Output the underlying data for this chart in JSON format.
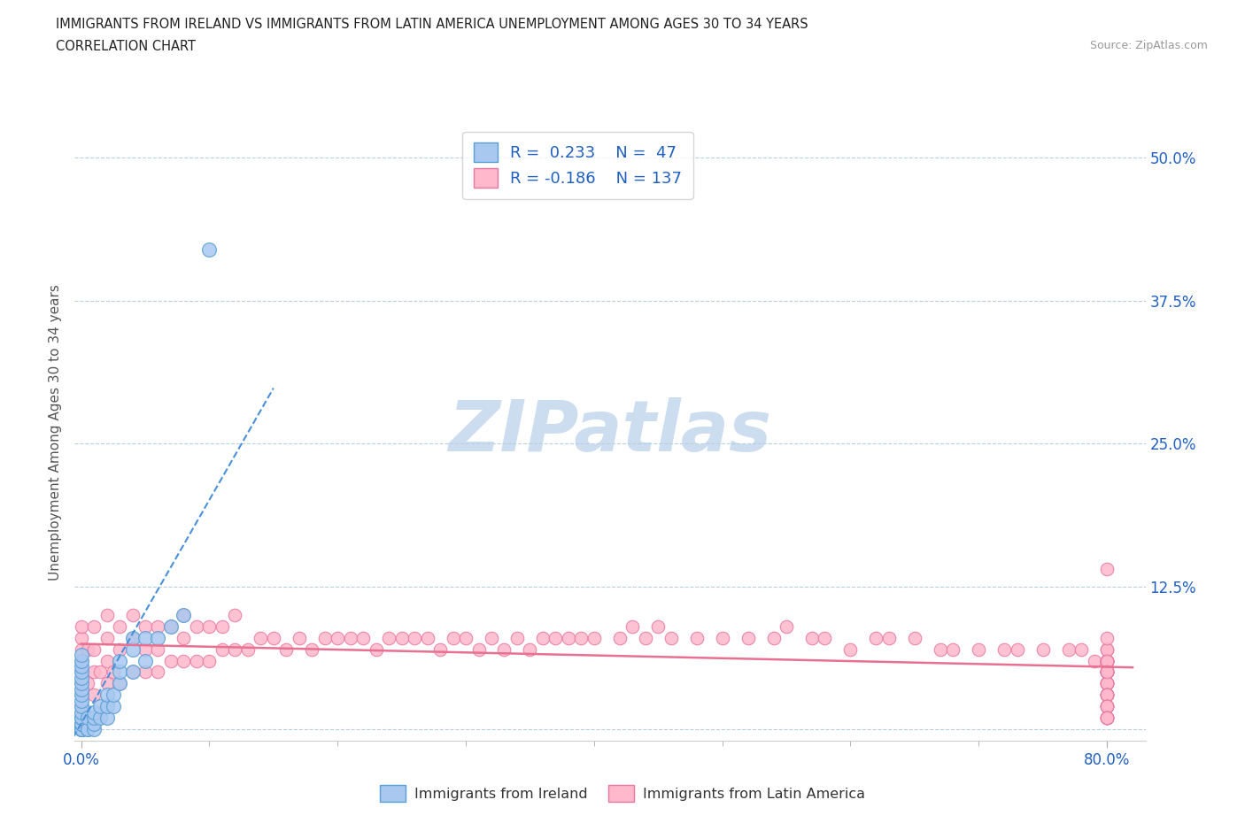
{
  "title_line1": "IMMIGRANTS FROM IRELAND VS IMMIGRANTS FROM LATIN AMERICA UNEMPLOYMENT AMONG AGES 30 TO 34 YEARS",
  "title_line2": "CORRELATION CHART",
  "source_text": "Source: ZipAtlas.com",
  "ylabel": "Unemployment Among Ages 30 to 34 years",
  "xlim": [
    -0.005,
    0.83
  ],
  "ylim": [
    -0.01,
    0.53
  ],
  "xtick_pos": [
    0.0,
    0.8
  ],
  "xtick_labels": [
    "0.0%",
    "80.0%"
  ],
  "ytick_pos": [
    0.0,
    0.125,
    0.25,
    0.375,
    0.5
  ],
  "ytick_labels": [
    "",
    "12.5%",
    "25.0%",
    "37.5%",
    "50.0%"
  ],
  "ireland_color": "#a8c8f0",
  "ireland_edge_color": "#5a9fd4",
  "latin_color": "#ffb8cc",
  "latin_edge_color": "#e878a0",
  "ireland_trend_color": "#4a90d9",
  "latin_trend_color": "#e87090",
  "watermark_text": "ZIPatlas",
  "watermark_color": "#ccddf0",
  "ireland_R": 0.233,
  "ireland_N": 47,
  "latin_R": -0.186,
  "latin_N": 137,
  "legend_color": "#2060c0",
  "legend_title_ireland": "Immigrants from Ireland",
  "legend_title_latin": "Immigrants from Latin America",
  "ireland_x": [
    0.0,
    0.0,
    0.0,
    0.0,
    0.0,
    0.0,
    0.0,
    0.0,
    0.0,
    0.0,
    0.0,
    0.0,
    0.0,
    0.0,
    0.0,
    0.0,
    0.0,
    0.0,
    0.0,
    0.0,
    0.0,
    0.005,
    0.005,
    0.005,
    0.01,
    0.01,
    0.01,
    0.01,
    0.015,
    0.015,
    0.02,
    0.02,
    0.02,
    0.025,
    0.025,
    0.03,
    0.03,
    0.03,
    0.04,
    0.04,
    0.04,
    0.05,
    0.05,
    0.06,
    0.07,
    0.08,
    0.1
  ],
  "ireland_y": [
    0.0,
    0.0,
    0.0,
    0.0,
    0.0,
    0.0,
    0.005,
    0.005,
    0.01,
    0.01,
    0.015,
    0.02,
    0.025,
    0.03,
    0.035,
    0.04,
    0.045,
    0.05,
    0.055,
    0.06,
    0.065,
    0.0,
    0.0,
    0.01,
    0.0,
    0.005,
    0.01,
    0.015,
    0.01,
    0.02,
    0.01,
    0.02,
    0.03,
    0.02,
    0.03,
    0.04,
    0.05,
    0.06,
    0.05,
    0.07,
    0.08,
    0.06,
    0.08,
    0.08,
    0.09,
    0.1,
    0.42
  ],
  "latin_x": [
    0.0,
    0.0,
    0.0,
    0.0,
    0.0,
    0.0,
    0.0,
    0.0,
    0.005,
    0.005,
    0.01,
    0.01,
    0.01,
    0.01,
    0.015,
    0.02,
    0.02,
    0.02,
    0.02,
    0.025,
    0.03,
    0.03,
    0.03,
    0.04,
    0.04,
    0.04,
    0.05,
    0.05,
    0.05,
    0.06,
    0.06,
    0.06,
    0.07,
    0.07,
    0.08,
    0.08,
    0.08,
    0.09,
    0.09,
    0.1,
    0.1,
    0.11,
    0.11,
    0.12,
    0.12,
    0.13,
    0.14,
    0.15,
    0.16,
    0.17,
    0.18,
    0.19,
    0.2,
    0.21,
    0.22,
    0.23,
    0.24,
    0.25,
    0.26,
    0.27,
    0.28,
    0.29,
    0.3,
    0.31,
    0.32,
    0.33,
    0.34,
    0.35,
    0.36,
    0.37,
    0.38,
    0.39,
    0.4,
    0.42,
    0.43,
    0.44,
    0.45,
    0.46,
    0.48,
    0.5,
    0.52,
    0.54,
    0.55,
    0.57,
    0.58,
    0.6,
    0.62,
    0.63,
    0.65,
    0.67,
    0.68,
    0.7,
    0.72,
    0.73,
    0.75,
    0.77,
    0.78,
    0.79,
    0.8,
    0.8,
    0.8,
    0.8,
    0.8,
    0.8,
    0.8,
    0.8,
    0.8,
    0.8,
    0.8,
    0.8,
    0.8,
    0.8,
    0.8,
    0.8,
    0.8,
    0.8,
    0.8,
    0.8,
    0.8,
    0.8,
    0.8,
    0.8,
    0.8,
    0.8,
    0.8,
    0.8,
    0.8,
    0.8,
    0.8,
    0.8,
    0.8,
    0.8,
    0.8,
    0.8,
    0.8,
    0.8,
    0.8
  ],
  "latin_y": [
    0.02,
    0.03,
    0.04,
    0.05,
    0.06,
    0.07,
    0.08,
    0.09,
    0.04,
    0.07,
    0.03,
    0.05,
    0.07,
    0.09,
    0.05,
    0.04,
    0.06,
    0.08,
    0.1,
    0.05,
    0.04,
    0.07,
    0.09,
    0.05,
    0.08,
    0.1,
    0.05,
    0.07,
    0.09,
    0.05,
    0.07,
    0.09,
    0.06,
    0.09,
    0.06,
    0.08,
    0.1,
    0.06,
    0.09,
    0.06,
    0.09,
    0.07,
    0.09,
    0.07,
    0.1,
    0.07,
    0.08,
    0.08,
    0.07,
    0.08,
    0.07,
    0.08,
    0.08,
    0.08,
    0.08,
    0.07,
    0.08,
    0.08,
    0.08,
    0.08,
    0.07,
    0.08,
    0.08,
    0.07,
    0.08,
    0.07,
    0.08,
    0.07,
    0.08,
    0.08,
    0.08,
    0.08,
    0.08,
    0.08,
    0.09,
    0.08,
    0.09,
    0.08,
    0.08,
    0.08,
    0.08,
    0.08,
    0.09,
    0.08,
    0.08,
    0.07,
    0.08,
    0.08,
    0.08,
    0.07,
    0.07,
    0.07,
    0.07,
    0.07,
    0.07,
    0.07,
    0.07,
    0.06,
    0.06,
    0.06,
    0.07,
    0.06,
    0.06,
    0.05,
    0.06,
    0.05,
    0.05,
    0.05,
    0.14,
    0.06,
    0.05,
    0.05,
    0.04,
    0.05,
    0.04,
    0.04,
    0.04,
    0.04,
    0.03,
    0.03,
    0.03,
    0.03,
    0.03,
    0.02,
    0.02,
    0.02,
    0.02,
    0.01,
    0.01,
    0.01,
    0.01,
    0.01,
    0.06,
    0.07,
    0.08,
    0.06,
    0.05
  ]
}
